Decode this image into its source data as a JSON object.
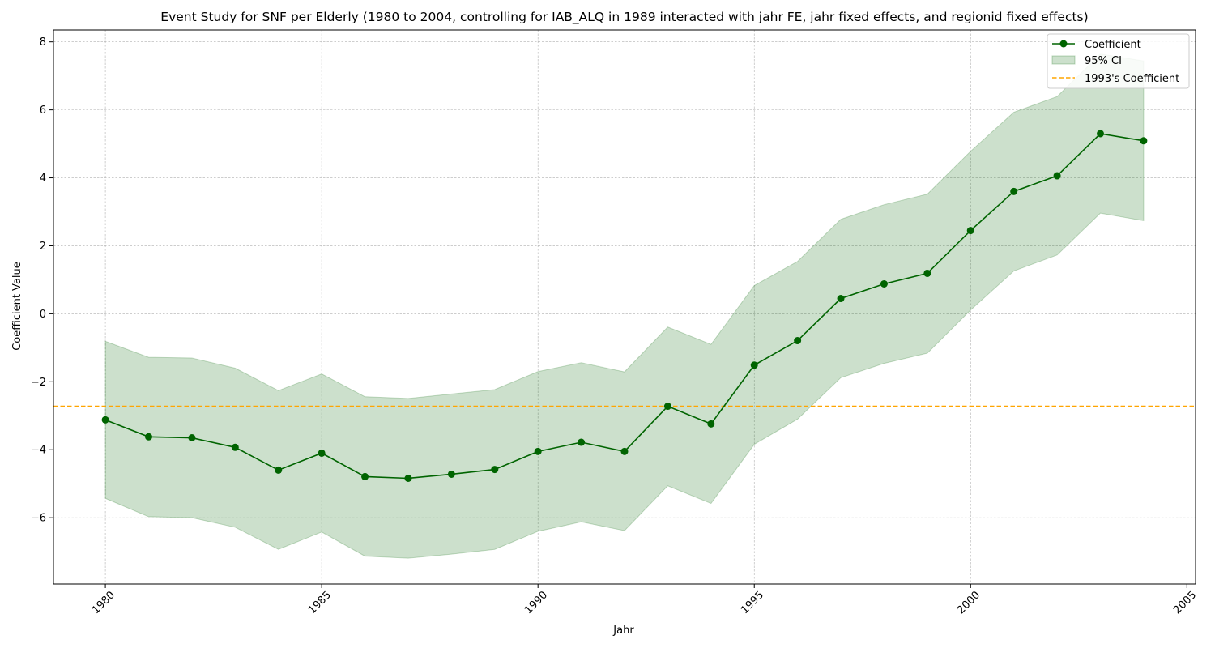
{
  "chart_data": {
    "type": "line",
    "title": "Event Study for SNF per Elderly (1980 to 2004, controlling for IAB_ALQ in 1989 interacted with jahr FE, jahr fixed effects, and regionid fixed effects)",
    "xlabel": "Jahr",
    "ylabel": "Coefficient Value",
    "xlim": [
      1978.8,
      2005.2
    ],
    "ylim": [
      -7.95,
      8.35
    ],
    "x_ticks": [
      1980,
      1985,
      1990,
      1995,
      2000,
      2005
    ],
    "y_ticks": [
      -6,
      -4,
      -2,
      0,
      2,
      4,
      6,
      8
    ],
    "grid": true,
    "legend_position": "top-right",
    "x": [
      1980,
      1981,
      1982,
      1983,
      1984,
      1985,
      1986,
      1987,
      1988,
      1989,
      1990,
      1991,
      1992,
      1993,
      1994,
      1995,
      1996,
      1997,
      1998,
      1999,
      2000,
      2001,
      2002,
      2003,
      2004
    ],
    "series": [
      {
        "name": "Coefficient",
        "color": "#006400",
        "values": [
          -3.12,
          -3.62,
          -3.65,
          -3.93,
          -4.6,
          -4.1,
          -4.79,
          -4.84,
          -4.72,
          -4.58,
          -4.05,
          -3.78,
          -4.05,
          -2.72,
          -3.24,
          -1.51,
          -0.79,
          0.45,
          0.88,
          1.19,
          2.45,
          3.6,
          4.06,
          5.3,
          5.09
        ]
      }
    ],
    "ci": {
      "name": "95% CI",
      "color": "#006400",
      "lower": [
        -5.43,
        -5.97,
        -6.0,
        -6.28,
        -6.93,
        -6.42,
        -7.13,
        -7.19,
        -7.07,
        -6.93,
        -6.4,
        -6.12,
        -6.38,
        -5.06,
        -5.58,
        -3.84,
        -3.1,
        -1.88,
        -1.46,
        -1.16,
        0.11,
        1.26,
        1.73,
        2.96,
        2.74
      ],
      "upper": [
        -0.81,
        -1.28,
        -1.3,
        -1.6,
        -2.26,
        -1.77,
        -2.44,
        -2.49,
        -2.36,
        -2.23,
        -1.7,
        -1.44,
        -1.71,
        -0.39,
        -0.9,
        0.83,
        1.54,
        2.78,
        3.21,
        3.52,
        4.78,
        5.93,
        6.39,
        7.64,
        7.44
      ]
    },
    "reference_line": {
      "name": "1993's Coefficient",
      "value": -2.72,
      "color": "#FFA500"
    }
  }
}
